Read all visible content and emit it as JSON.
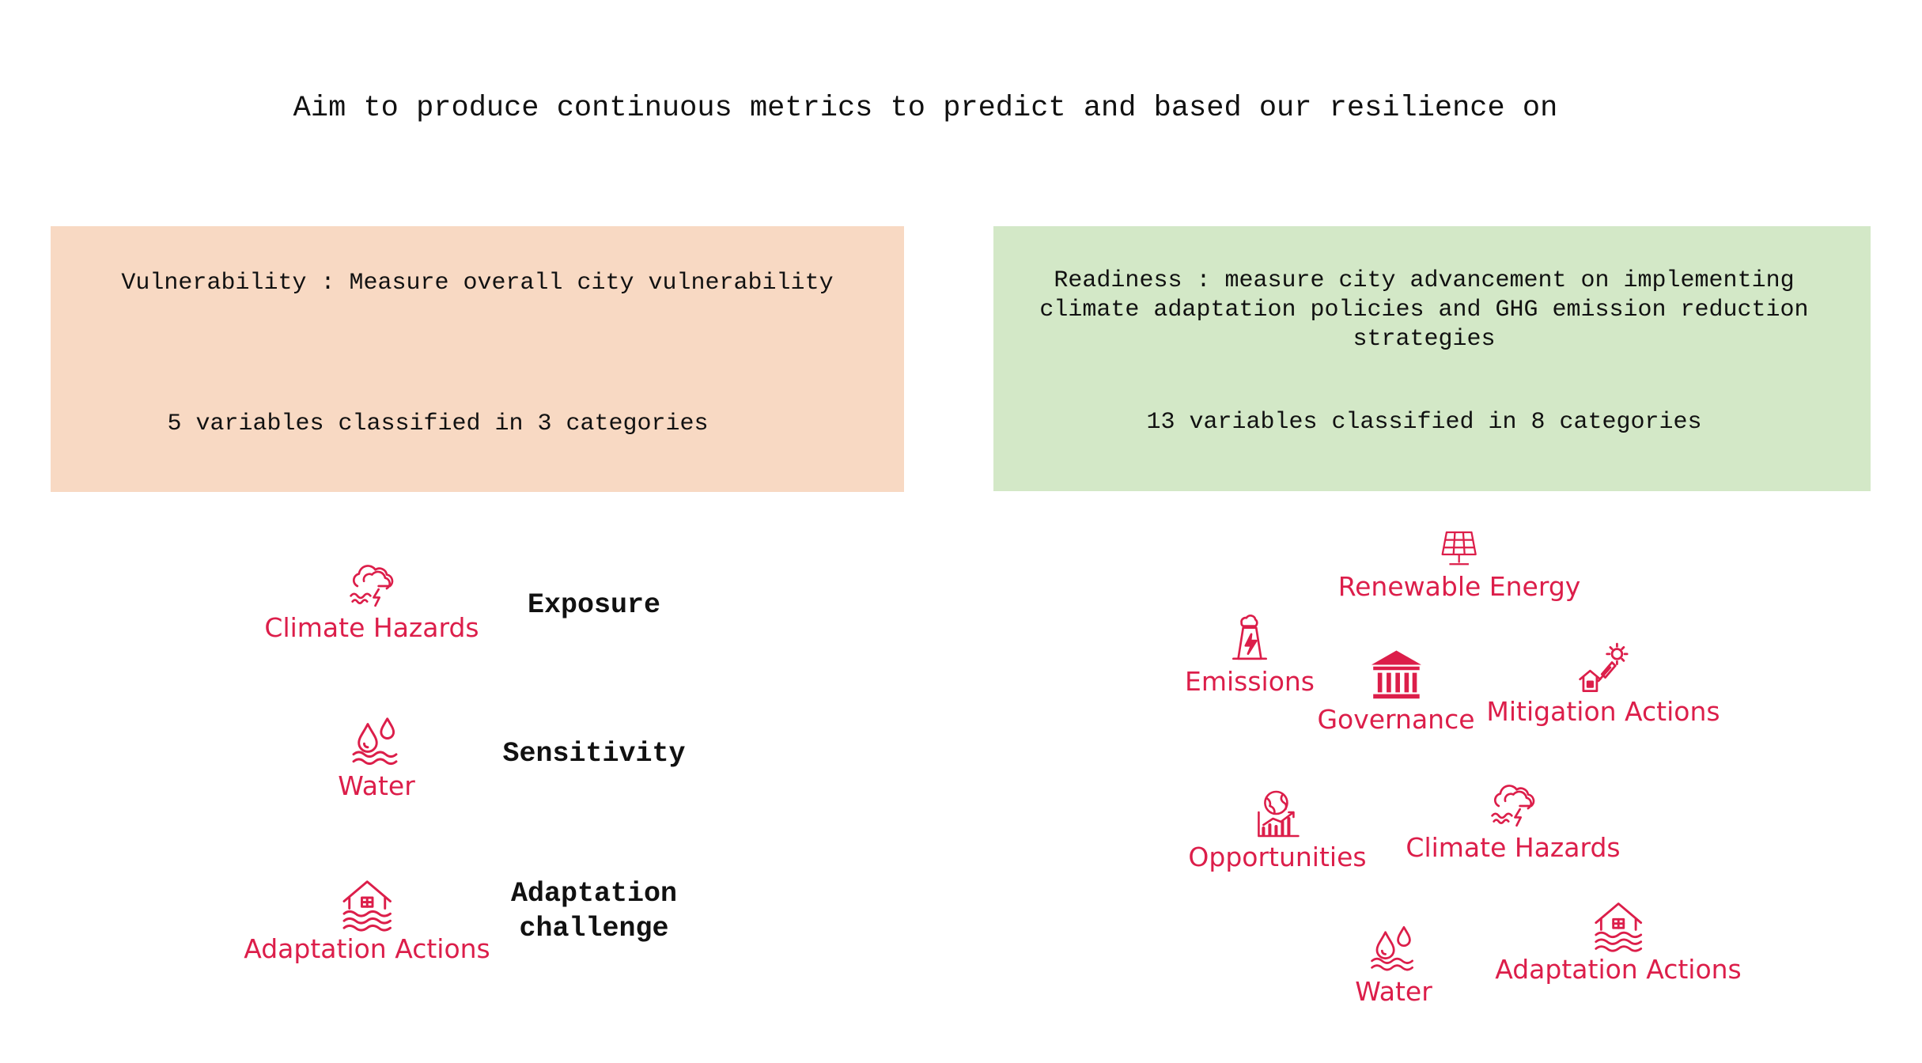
{
  "title": "Aim to produce continuous metrics to predict and based our resilience on",
  "vulnerability": {
    "heading": "Vulnerability : Measure overall city vulnerability",
    "summary": "5 variables classified in 3 categories",
    "color": "#f8d9c3",
    "groups": [
      {
        "category": "Exposure",
        "variable": "Climate Hazards",
        "icon": "storm-icon"
      },
      {
        "category": "Sensitivity",
        "variable": "Water",
        "icon": "water-drops-icon"
      },
      {
        "category": "Adaptation\nchallenge",
        "variable": "Adaptation Actions",
        "icon": "flooded-house-icon"
      }
    ]
  },
  "readiness": {
    "heading": "Readiness : measure city advancement on implementing\nclimate adaptation policies and GHG emission reduction\nstrategies",
    "summary": "13 variables classified in 8 categories",
    "color": "#d3e8c7",
    "variables": [
      {
        "label": "Renewable Energy",
        "icon": "solar-panel-icon"
      },
      {
        "label": "Emissions",
        "icon": "power-plant-icon"
      },
      {
        "label": "Governance",
        "icon": "government-building-icon"
      },
      {
        "label": "Mitigation Actions",
        "icon": "solar-house-icon"
      },
      {
        "label": "Opportunities",
        "icon": "globe-chart-icon"
      },
      {
        "label": "Climate Hazards",
        "icon": "storm-icon"
      },
      {
        "label": "Water",
        "icon": "water-drops-icon"
      },
      {
        "label": "Adaptation Actions",
        "icon": "flooded-house-icon"
      }
    ]
  },
  "accent_color": "#dc1e4a"
}
